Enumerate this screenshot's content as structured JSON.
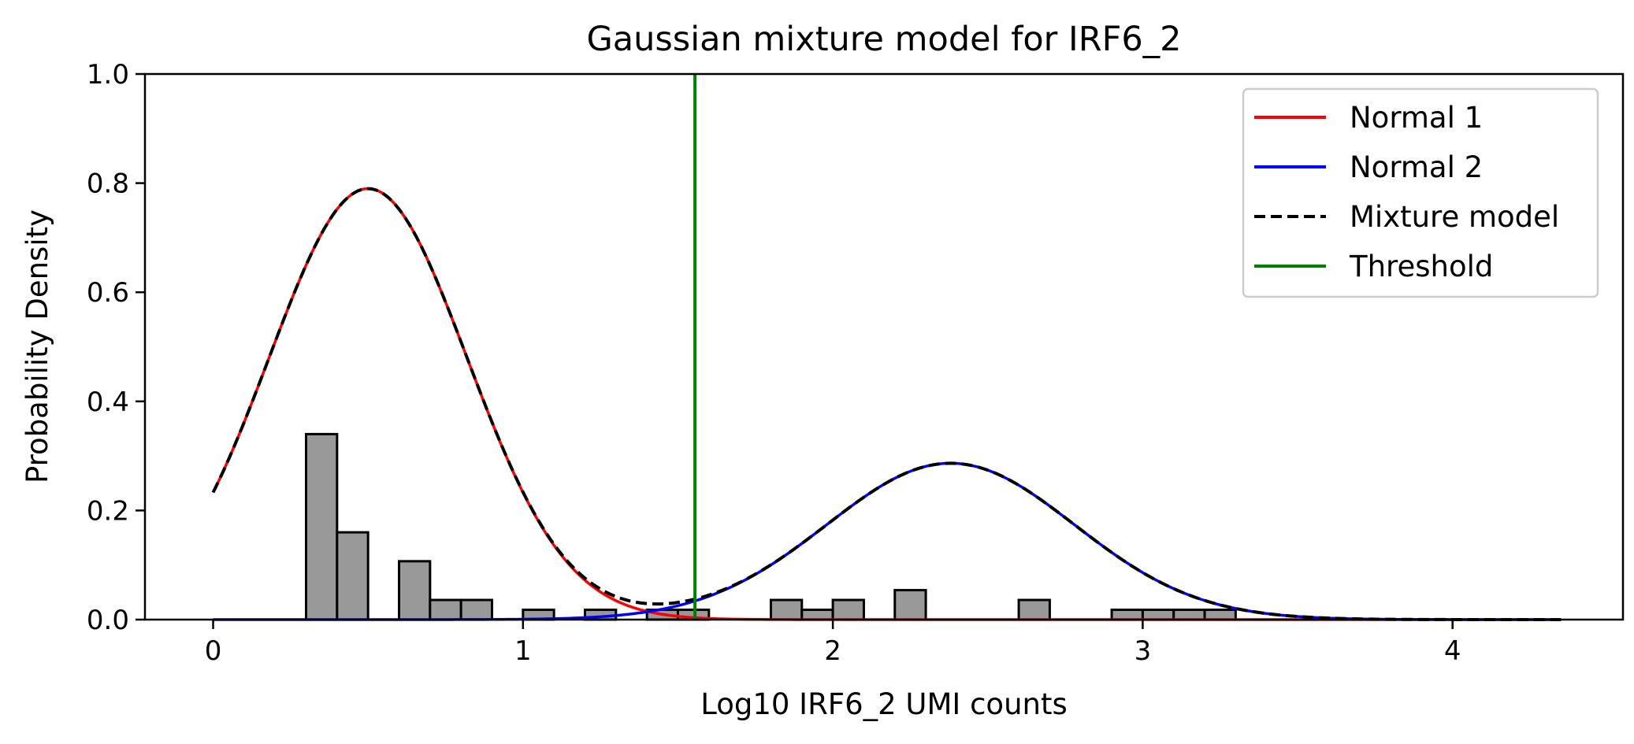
{
  "chart_data": {
    "type": "line",
    "title": "Gaussian mixture model for IRF6_2",
    "xlabel": "Log10 IRF6_2 UMI counts",
    "ylabel": "Probability Density",
    "xlim": [
      -0.22,
      4.55
    ],
    "ylim": [
      0.0,
      1.0
    ],
    "xticks": [
      "0",
      "1",
      "2",
      "3",
      "4"
    ],
    "yticks": [
      "0.0",
      "0.2",
      "0.4",
      "0.6",
      "0.8",
      "1.0"
    ],
    "grid": false,
    "legend_position": "top-right",
    "colors": {
      "normal1": "#ff0000",
      "normal2": "#0000ff",
      "mixture": "#000000",
      "threshold": "#008000",
      "hist_fill": "#999999",
      "hist_edge": "#000000"
    },
    "series": [
      {
        "name": "Normal 1",
        "kind": "gaussian",
        "weight": 0.6336,
        "mean": 0.5,
        "sd": 0.32
      },
      {
        "name": "Normal 2",
        "kind": "gaussian",
        "weight": 0.2873,
        "mean": 2.38,
        "sd": 0.4
      },
      {
        "name": "Mixture model",
        "kind": "sum"
      },
      {
        "name": "Threshold",
        "kind": "vline",
        "x": 1.555
      }
    ],
    "curve_x_range": [
      0.0,
      4.35
    ],
    "histogram": {
      "bin_width": 0.1,
      "bins": [
        {
          "x0": 0.3,
          "height": 0.34
        },
        {
          "x0": 0.4,
          "height": 0.16
        },
        {
          "x0": 0.6,
          "height": 0.107
        },
        {
          "x0": 0.7,
          "height": 0.036
        },
        {
          "x0": 0.8,
          "height": 0.036
        },
        {
          "x0": 1.0,
          "height": 0.018
        },
        {
          "x0": 1.2,
          "height": 0.018
        },
        {
          "x0": 1.4,
          "height": 0.018
        },
        {
          "x0": 1.5,
          "height": 0.018
        },
        {
          "x0": 1.8,
          "height": 0.036
        },
        {
          "x0": 1.9,
          "height": 0.018
        },
        {
          "x0": 2.0,
          "height": 0.036
        },
        {
          "x0": 2.2,
          "height": 0.054
        },
        {
          "x0": 2.6,
          "height": 0.036
        },
        {
          "x0": 2.9,
          "height": 0.018
        },
        {
          "x0": 3.0,
          "height": 0.018
        },
        {
          "x0": 3.1,
          "height": 0.018
        },
        {
          "x0": 3.2,
          "height": 0.018
        }
      ]
    }
  }
}
